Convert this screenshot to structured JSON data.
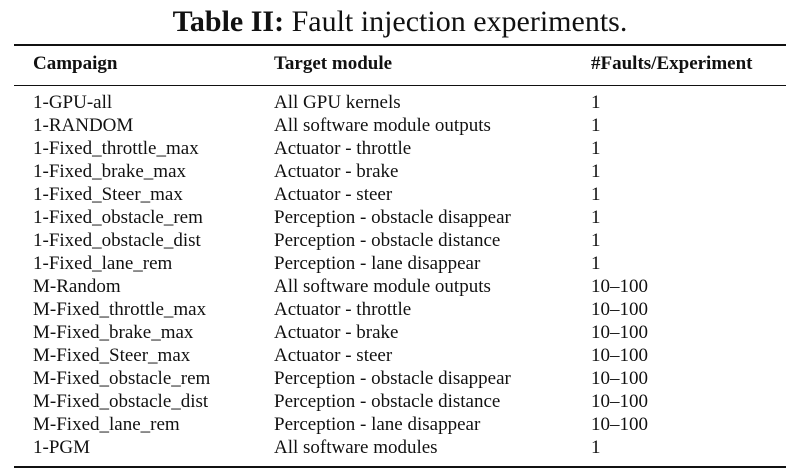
{
  "caption": {
    "label": "Table II:",
    "text": " Fault injection experiments."
  },
  "headers": [
    "Campaign",
    "Target module",
    "#Faults/Experiment"
  ],
  "rows": [
    [
      "1-GPU-all",
      "All GPU kernels",
      "1"
    ],
    [
      "1-RANDOM",
      "All software module outputs",
      "1"
    ],
    [
      "1-Fixed_throttle_max",
      "Actuator - throttle",
      "1"
    ],
    [
      "1-Fixed_brake_max",
      "Actuator - brake",
      "1"
    ],
    [
      "1-Fixed_Steer_max",
      "Actuator - steer",
      "1"
    ],
    [
      "1-Fixed_obstacle_rem",
      "Perception - obstacle disappear",
      "1"
    ],
    [
      "1-Fixed_obstacle_dist",
      "Perception - obstacle distance",
      "1"
    ],
    [
      "1-Fixed_lane_rem",
      "Perception - lane disappear",
      "1"
    ],
    [
      "M-Random",
      "All software module outputs",
      "10–100"
    ],
    [
      "M-Fixed_throttle_max",
      "Actuator - throttle",
      "10–100"
    ],
    [
      "M-Fixed_brake_max",
      "Actuator - brake",
      "10–100"
    ],
    [
      "M-Fixed_Steer_max",
      "Actuator - steer",
      "10–100"
    ],
    [
      "M-Fixed_obstacle_rem",
      "Perception - obstacle disappear",
      "10–100"
    ],
    [
      "M-Fixed_obstacle_dist",
      "Perception - obstacle distance",
      "10–100"
    ],
    [
      "M-Fixed_lane_rem",
      "Perception - lane disappear",
      "10–100"
    ],
    [
      "1-PGM",
      "All software modules",
      "1"
    ]
  ]
}
